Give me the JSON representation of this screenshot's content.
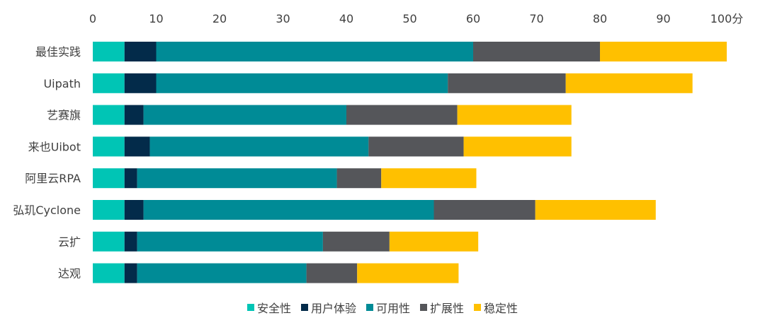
{
  "chart_data": {
    "type": "bar",
    "orientation": "horizontal",
    "stacked": true,
    "title": "",
    "xlabel": "",
    "ylabel": "",
    "xlim": [
      0,
      100
    ],
    "x_ticks": [
      0,
      10,
      20,
      30,
      40,
      50,
      60,
      70,
      80,
      90,
      100
    ],
    "x_unit": "分",
    "grid": false,
    "legend_position": "bottom",
    "categories": [
      "最佳实践",
      "Uipath",
      "艺赛旗",
      "来也Uibot",
      "阿里云RPA",
      "弘玑Cyclone",
      "云扩",
      "达观"
    ],
    "series": [
      {
        "name": "安全性",
        "color": "#00C5B5",
        "values": [
          5,
          5,
          5,
          5,
          5,
          5,
          5,
          5
        ]
      },
      {
        "name": "用户体验",
        "color": "#032B4A",
        "values": [
          5,
          5,
          3,
          4,
          2,
          3,
          2,
          2
        ]
      },
      {
        "name": "可用性",
        "color": "#008B96",
        "values": [
          50,
          46,
          32,
          34.5,
          31.5,
          45.8,
          29.3,
          26.7
        ]
      },
      {
        "name": "扩展性",
        "color": "#55565A",
        "values": [
          20,
          18.6,
          17.5,
          15,
          7,
          16,
          10.5,
          8
        ]
      },
      {
        "name": "稳定性",
        "color": "#FFC000",
        "values": [
          20,
          20,
          18,
          17,
          15,
          19,
          14,
          16
        ]
      }
    ]
  }
}
